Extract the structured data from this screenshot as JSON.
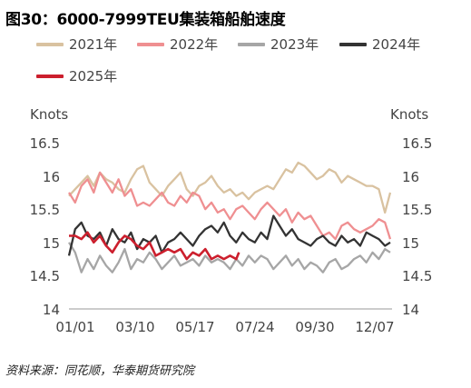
{
  "title": "图30：6000-7999TEU集装箱船舶速度",
  "source": "资料来源：同花顺，华泰期货研究院",
  "chart_data": {
    "type": "line",
    "ylabel_left": "Knots",
    "ylabel_right": "Knots",
    "ylim": [
      14,
      16.5
    ],
    "yticks": [
      "16.5",
      "16",
      "15.5",
      "15",
      "14.5",
      "14"
    ],
    "ytick_values": [
      16.5,
      16,
      15.5,
      15,
      14.5,
      14
    ],
    "xlim": [
      1,
      366
    ],
    "xticks": [
      "01/01",
      "03/10",
      "05/17",
      "07/24",
      "09/30",
      "12/07"
    ],
    "xtick_days": [
      1,
      69,
      137,
      205,
      273,
      341
    ],
    "legend": [
      "2021年",
      "2022年",
      "2023年",
      "2024年",
      "2025年"
    ],
    "grid": false,
    "series": [
      {
        "name": "2021年",
        "color": "#d9c2a0",
        "x": [
          1,
          8,
          15,
          22,
          29,
          36,
          43,
          50,
          57,
          64,
          71,
          78,
          85,
          92,
          99,
          106,
          113,
          120,
          127,
          134,
          141,
          148,
          155,
          162,
          169,
          176,
          183,
          190,
          197,
          204,
          211,
          218,
          225,
          232,
          239,
          246,
          253,
          260,
          267,
          274,
          281,
          288,
          295,
          302,
          309,
          316,
          323,
          330,
          337,
          344,
          351,
          358,
          364
        ],
        "y": [
          15.7,
          15.8,
          15.9,
          16.0,
          15.85,
          16.05,
          15.95,
          15.9,
          15.8,
          15.75,
          15.95,
          16.1,
          16.15,
          15.9,
          15.8,
          15.7,
          15.85,
          15.95,
          16.05,
          15.8,
          15.7,
          15.85,
          15.9,
          16.0,
          15.85,
          15.75,
          15.8,
          15.7,
          15.75,
          15.65,
          15.75,
          15.8,
          15.85,
          15.8,
          15.95,
          16.1,
          16.05,
          16.2,
          16.15,
          16.05,
          15.95,
          16.0,
          16.1,
          16.05,
          15.9,
          16.0,
          15.95,
          15.9,
          15.85,
          15.85,
          15.8,
          15.45,
          15.75
        ]
      },
      {
        "name": "2022年",
        "color": "#ef8f91",
        "x": [
          1,
          8,
          15,
          22,
          29,
          36,
          43,
          50,
          57,
          64,
          71,
          78,
          85,
          92,
          99,
          106,
          113,
          120,
          127,
          134,
          141,
          148,
          155,
          162,
          169,
          176,
          183,
          190,
          197,
          204,
          211,
          218,
          225,
          232,
          239,
          246,
          253,
          260,
          267,
          274,
          281,
          288,
          295,
          302,
          309,
          316,
          323,
          330,
          337,
          344,
          351,
          358,
          364
        ],
        "y": [
          15.75,
          15.6,
          15.85,
          15.95,
          15.75,
          16.05,
          15.9,
          15.75,
          15.95,
          15.7,
          15.8,
          15.55,
          15.6,
          15.55,
          15.65,
          15.75,
          15.6,
          15.55,
          15.7,
          15.6,
          15.75,
          15.7,
          15.5,
          15.6,
          15.45,
          15.5,
          15.35,
          15.5,
          15.55,
          15.45,
          15.35,
          15.5,
          15.6,
          15.5,
          15.4,
          15.5,
          15.3,
          15.45,
          15.35,
          15.4,
          15.25,
          15.1,
          15.15,
          15.05,
          15.25,
          15.3,
          15.2,
          15.15,
          15.2,
          15.25,
          15.35,
          15.3,
          15.05
        ]
      },
      {
        "name": "2023年",
        "color": "#a6a6a6",
        "x": [
          1,
          8,
          15,
          22,
          29,
          36,
          43,
          50,
          57,
          64,
          71,
          78,
          85,
          92,
          99,
          106,
          113,
          120,
          127,
          134,
          141,
          148,
          155,
          162,
          169,
          176,
          183,
          190,
          197,
          204,
          211,
          218,
          225,
          232,
          239,
          246,
          253,
          260,
          267,
          274,
          281,
          288,
          295,
          302,
          309,
          316,
          323,
          330,
          337,
          344,
          351,
          358,
          364
        ],
        "y": [
          15.0,
          14.85,
          14.55,
          14.75,
          14.6,
          14.8,
          14.65,
          14.55,
          14.7,
          14.9,
          14.6,
          14.75,
          14.7,
          14.85,
          14.75,
          14.6,
          14.7,
          14.8,
          14.65,
          14.7,
          14.75,
          14.65,
          14.8,
          14.7,
          14.75,
          14.7,
          14.6,
          14.75,
          14.65,
          14.8,
          14.7,
          14.8,
          14.75,
          14.6,
          14.7,
          14.8,
          14.65,
          14.75,
          14.6,
          14.7,
          14.65,
          14.55,
          14.7,
          14.75,
          14.6,
          14.65,
          14.75,
          14.8,
          14.7,
          14.85,
          14.75,
          14.9,
          14.85
        ]
      },
      {
        "name": "2024年",
        "color": "#333333",
        "x": [
          1,
          8,
          15,
          22,
          29,
          36,
          43,
          50,
          57,
          64,
          71,
          78,
          85,
          92,
          99,
          106,
          113,
          120,
          127,
          134,
          141,
          148,
          155,
          162,
          169,
          176,
          183,
          190,
          197,
          204,
          211,
          218,
          225,
          232,
          239,
          246,
          253,
          260,
          267,
          274,
          281,
          288,
          295,
          302,
          309,
          316,
          323,
          330,
          337,
          344,
          351,
          358,
          364
        ],
        "y": [
          14.8,
          15.2,
          15.3,
          15.1,
          15.05,
          15.15,
          14.95,
          15.2,
          15.05,
          15.0,
          15.15,
          14.9,
          15.05,
          15.0,
          15.1,
          14.85,
          15.0,
          15.05,
          15.15,
          15.05,
          14.95,
          15.1,
          15.2,
          15.25,
          15.15,
          15.3,
          15.1,
          15.0,
          15.15,
          15.05,
          15.0,
          15.15,
          15.05,
          15.4,
          15.25,
          15.1,
          15.2,
          15.05,
          15.0,
          14.95,
          15.05,
          15.1,
          15.0,
          14.95,
          15.1,
          15.0,
          15.05,
          14.95,
          15.15,
          15.1,
          15.05,
          14.95,
          15.0
        ]
      },
      {
        "name": "2025年",
        "color": "#cc1f2d",
        "x": [
          1,
          8,
          15,
          22,
          29,
          36,
          43,
          50,
          57,
          64,
          71,
          78,
          85,
          92,
          99,
          106,
          113,
          120,
          127,
          134,
          141,
          148,
          155,
          162,
          169,
          176,
          183,
          190,
          193
        ],
        "y": [
          15.1,
          15.1,
          15.05,
          15.15,
          15.0,
          15.1,
          14.95,
          14.85,
          15.0,
          15.1,
          15.05,
          14.95,
          14.9,
          15.0,
          14.8,
          14.85,
          14.9,
          14.85,
          14.9,
          14.75,
          14.85,
          14.8,
          14.9,
          14.75,
          14.8,
          14.75,
          14.8,
          14.75,
          14.85
        ]
      }
    ]
  }
}
